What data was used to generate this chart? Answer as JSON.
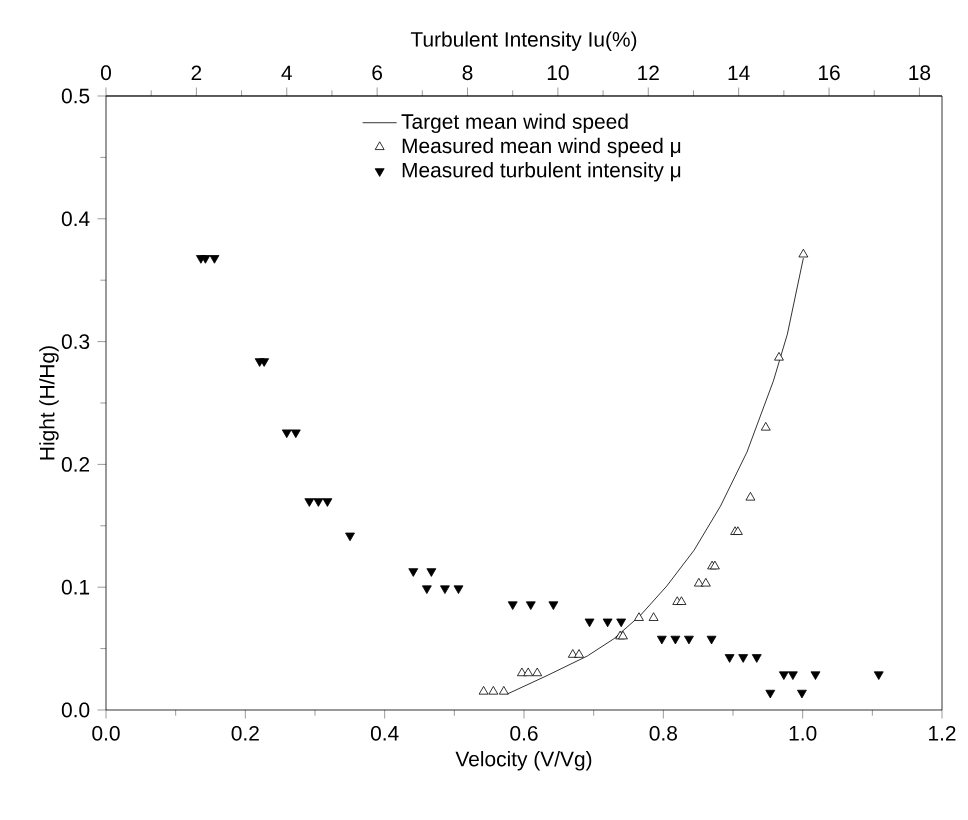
{
  "chart_data": {
    "type": "scatter",
    "xlabel": "Velocity (V/Vg)",
    "ylabel": "Hight (H/Hg)",
    "x2label": "Turbulent Intensity Iu(%)",
    "xlim": [
      0,
      1.2
    ],
    "xticks": [
      {
        "value": 0,
        "label": "0.0"
      },
      0.2,
      0.4,
      0.6,
      0.8,
      {
        "value": 1,
        "label": "1.0"
      },
      1.2
    ],
    "x2lim": [
      0,
      18.5
    ],
    "x2ticks": [
      0,
      2,
      4,
      6,
      8,
      10,
      12,
      14,
      16,
      18
    ],
    "ylim": [
      0,
      0.5
    ],
    "yticks": [
      {
        "value": 0,
        "label": "0.0"
      },
      0.1,
      0.2,
      0.3,
      0.4,
      0.5
    ],
    "legend": "top",
    "grid": false,
    "series": [
      {
        "name": "Target mean wind speed",
        "type": "line",
        "marker": "none",
        "line_style": "solid",
        "color": "#000000",
        "x": [
          0.576,
          0.633,
          0.691,
          0.729,
          0.767,
          0.805,
          0.844,
          0.882,
          0.92,
          0.958,
          0.978,
          1.001
        ],
        "values": [
          0.013,
          0.028,
          0.044,
          0.058,
          0.077,
          0.101,
          0.13,
          0.166,
          0.21,
          0.268,
          0.306,
          0.368
        ]
      },
      {
        "name": "Measured mean wind speed μ",
        "marker": "triangle",
        "color": "#000000",
        "x": [
          0.542,
          0.556,
          0.571,
          0.597,
          0.606,
          0.619,
          0.67,
          0.679,
          0.738,
          0.742,
          0.765,
          0.786,
          0.82,
          0.826,
          0.851,
          0.861,
          0.87,
          0.874,
          0.903,
          0.907,
          0.925,
          0.947,
          0.966,
          1.001
        ],
        "values": [
          0.015,
          0.015,
          0.015,
          0.03,
          0.03,
          0.03,
          0.045,
          0.045,
          0.06,
          0.06,
          0.075,
          0.075,
          0.088,
          0.088,
          0.103,
          0.103,
          0.117,
          0.117,
          0.145,
          0.145,
          0.173,
          0.23,
          0.287,
          0.371
        ]
      },
      {
        "name": "Measured turbulent intensity μ",
        "marker": "triangle-down",
        "axis": "x2",
        "color": "#000000",
        "x": [
          2.1,
          2.2,
          2.4,
          3.4,
          3.5,
          4.0,
          4.2,
          4.5,
          4.7,
          4.9,
          5.4,
          6.8,
          7.2,
          7.1,
          7.5,
          7.8,
          9.0,
          9.4,
          9.9,
          10.7,
          11.1,
          11.4,
          12.3,
          12.6,
          12.9,
          13.4,
          13.8,
          14.1,
          14.4,
          15.0,
          15.2,
          15.7,
          17.1,
          14.7,
          15.4
        ],
        "values": [
          0.368,
          0.368,
          0.368,
          0.284,
          0.284,
          0.226,
          0.226,
          0.17,
          0.17,
          0.17,
          0.142,
          0.113,
          0.113,
          0.099,
          0.099,
          0.099,
          0.086,
          0.086,
          0.086,
          0.072,
          0.072,
          0.072,
          0.058,
          0.058,
          0.058,
          0.058,
          0.043,
          0.043,
          0.043,
          0.029,
          0.029,
          0.029,
          0.029,
          0.014,
          0.014
        ]
      }
    ]
  }
}
